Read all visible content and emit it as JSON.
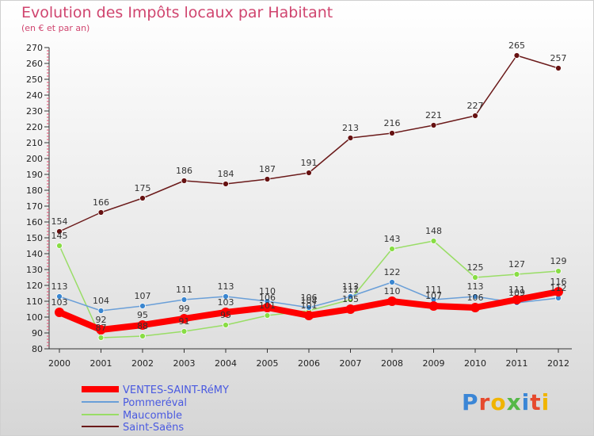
{
  "chart_data": {
    "type": "line",
    "title": "Evolution des Impôts locaux par Habitant",
    "subtitle": "(en € et par an)",
    "xlabel": "",
    "ylabel": "",
    "x": [
      "2000",
      "2001",
      "2002",
      "2003",
      "2004",
      "2005",
      "2006",
      "2007",
      "2008",
      "2009",
      "2010",
      "2011",
      "2012"
    ],
    "ylim": [
      80,
      270
    ],
    "yticks": [
      80,
      90,
      100,
      110,
      120,
      130,
      140,
      150,
      160,
      170,
      180,
      190,
      200,
      210,
      220,
      230,
      240,
      250,
      260,
      270
    ],
    "grid": false,
    "legend_position": "bottom-left",
    "series": [
      {
        "name": "VENTES-SAINT-RéMY",
        "color": "#ff0000",
        "values": [
          103,
          92,
          95,
          99,
          103,
          106,
          101,
          105,
          110,
          107,
          106,
          111,
          116
        ],
        "labels": [
          "103",
          "92",
          "95",
          "99",
          "103",
          "106",
          "101",
          "105",
          "110",
          "107",
          "106",
          "111",
          "116"
        ]
      },
      {
        "name": "Pommeréval",
        "color": "#6a9fd8",
        "values": [
          113,
          104,
          107,
          111,
          113,
          110,
          106,
          113,
          122,
          111,
          113,
          109,
          112
        ],
        "labels": [
          "113",
          "104",
          "107",
          "111",
          "113",
          "110",
          "106",
          "113",
          "122",
          "111",
          "113",
          "109",
          "112"
        ]
      },
      {
        "name": "Maucomble",
        "color": "#99dd66",
        "values": [
          145,
          87,
          88,
          91,
          95,
          101,
          104,
          111,
          143,
          148,
          125,
          127,
          129
        ],
        "labels": [
          "145",
          "87",
          "88",
          "91",
          "95",
          "101",
          "104",
          "111",
          "143",
          "148",
          "125",
          "127",
          "129"
        ]
      },
      {
        "name": "Saint-Saëns",
        "color": "#6b1a1a",
        "values": [
          154,
          166,
          175,
          186,
          184,
          187,
          191,
          213,
          216,
          221,
          227,
          265,
          257
        ],
        "labels": [
          "154",
          "166",
          "175",
          "186",
          "184",
          "187",
          "191",
          "213",
          "216",
          "221",
          "227",
          "265",
          "257"
        ]
      }
    ]
  },
  "logo": {
    "text": "Proxiti"
  }
}
